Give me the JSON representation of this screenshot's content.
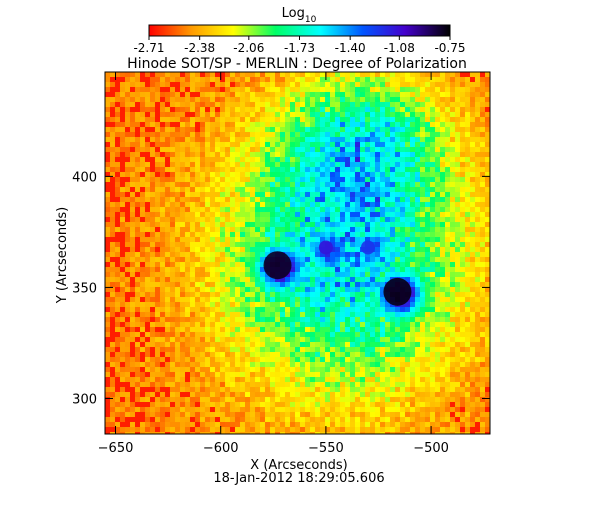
{
  "chart_data": {
    "type": "heatmap",
    "title": "Hinode SOT/SP - MERLIN : Degree of Polarization",
    "xlabel": "X (Arcseconds)",
    "ylabel": "Y (Arcseconds)",
    "timestamp": "18-Jan-2012 18:29:05.606",
    "xlim": [
      -655,
      -472
    ],
    "ylim": [
      284,
      447
    ],
    "x_ticks": [
      -650,
      -600,
      -550,
      -500
    ],
    "y_ticks": [
      300,
      350,
      400
    ],
    "colorbar": {
      "label_base": "Log",
      "label_sub": "10",
      "range": [
        -2.71,
        -0.75
      ],
      "ticks": [
        "-2.71",
        "-2.38",
        "-2.06",
        "-1.73",
        "-1.40",
        "-1.08",
        "-0.75"
      ],
      "colormap": [
        "#ff0000",
        "#ff9900",
        "#ffff00",
        "#00ff66",
        "#00ffff",
        "#0055ff",
        "#4400cc",
        "#000000"
      ]
    },
    "features": [
      {
        "name": "sunspot",
        "x": -573,
        "y": 360,
        "level": -0.8
      },
      {
        "name": "sunspot",
        "x": -516,
        "y": 348,
        "level": -0.78
      },
      {
        "name": "pore",
        "x": -550,
        "y": 368,
        "level": -1.1
      },
      {
        "name": "pore",
        "x": -530,
        "y": 368,
        "level": -1.2
      }
    ]
  }
}
